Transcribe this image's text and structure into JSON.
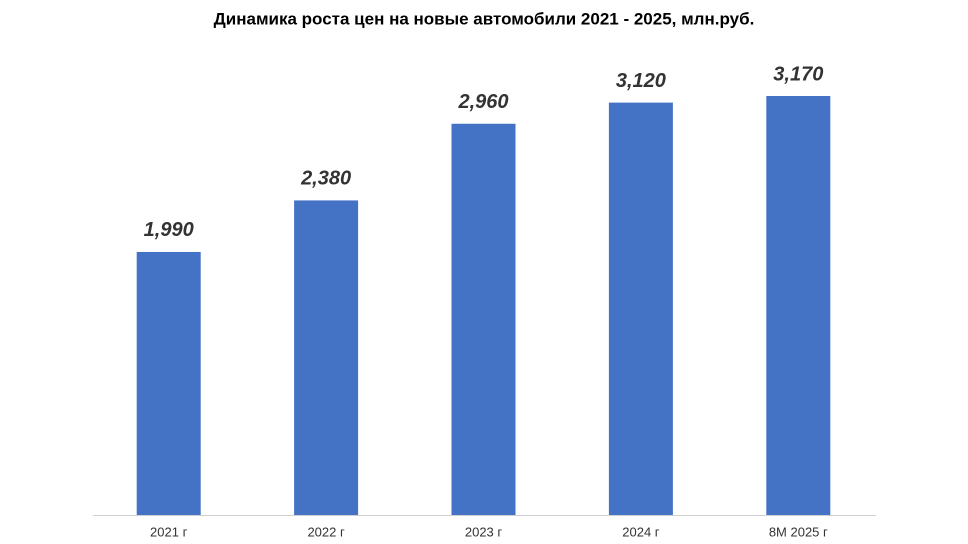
{
  "chart_data": {
    "type": "bar",
    "title": "Динамика роста цен на новые автомобили 2021 - 2025, млн.руб.",
    "categories": [
      "2021 г",
      "2022 г",
      "2023 г",
      "2024 г",
      "8М 2025 г"
    ],
    "values": [
      1.99,
      2.38,
      2.96,
      3.12,
      3.17
    ],
    "value_labels": [
      "1,990",
      "2,380",
      "2,960",
      "3,120",
      "3,170"
    ],
    "color": "#4472c4"
  }
}
